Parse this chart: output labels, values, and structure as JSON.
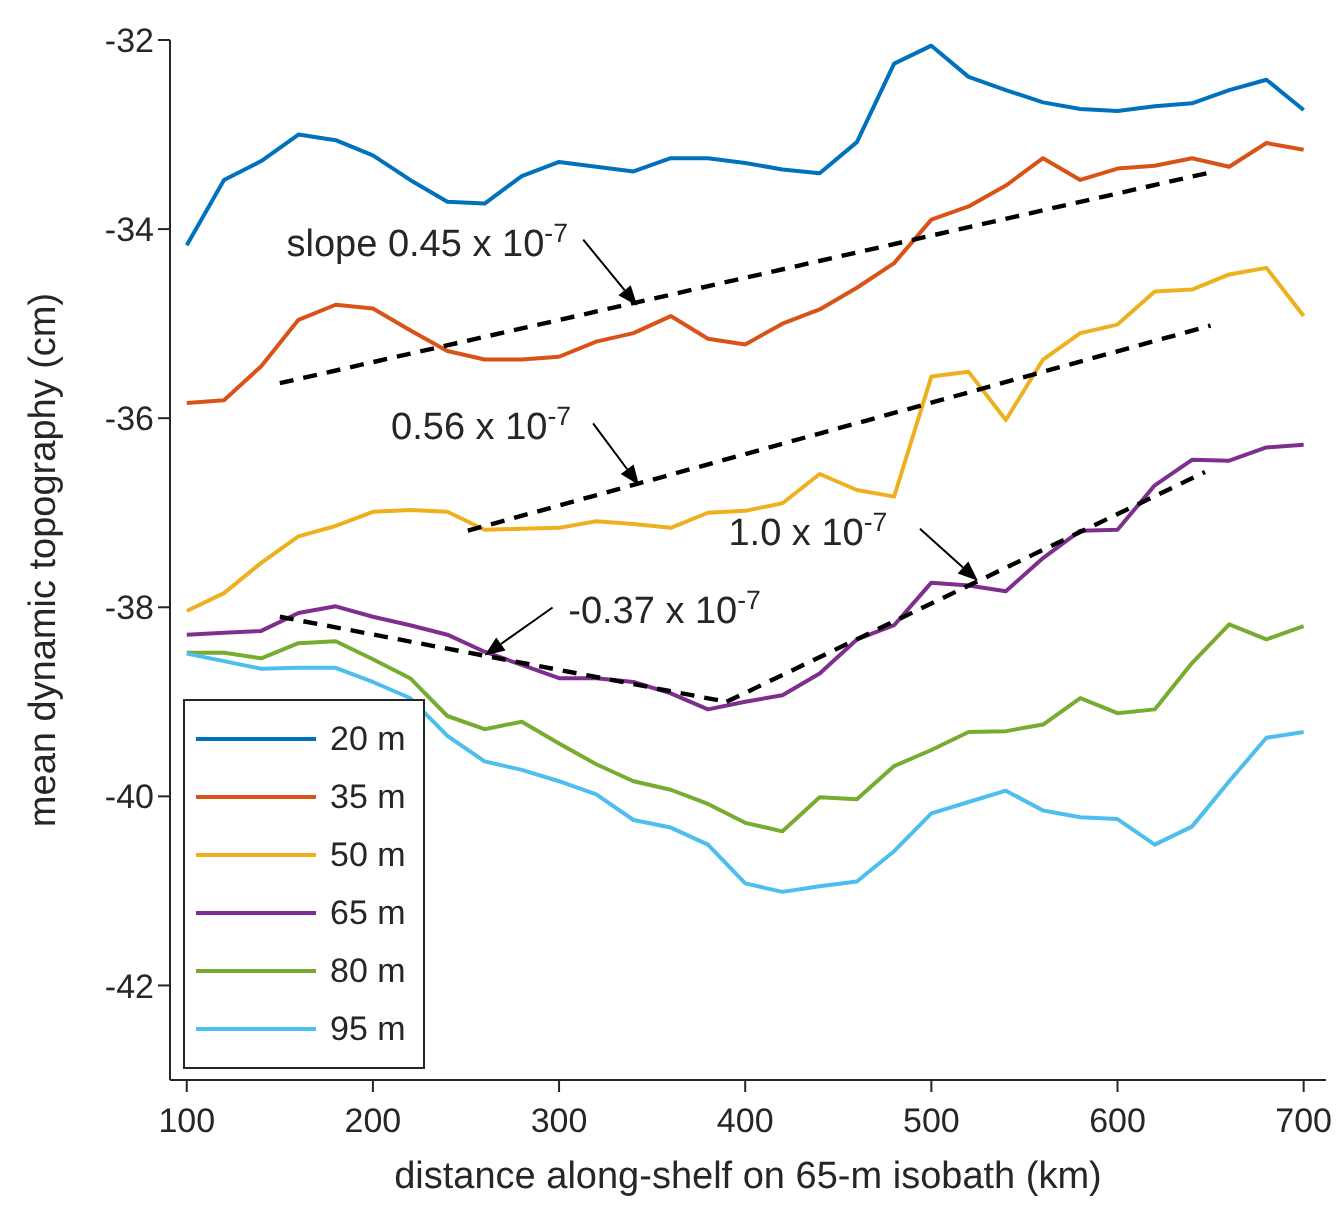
{
  "chart_data": {
    "type": "line",
    "xlabel": "distance along-shelf on 65-m isobath (km)",
    "ylabel": "mean dynamic topography (cm)",
    "x": [
      100,
      120,
      140,
      160,
      180,
      200,
      220,
      240,
      260,
      280,
      300,
      320,
      340,
      360,
      380,
      400,
      420,
      440,
      460,
      480,
      500,
      520,
      540,
      560,
      580,
      600,
      620,
      640,
      660,
      680,
      700
    ],
    "series": [
      {
        "name": "20 m",
        "color": "#0072bd",
        "values": [
          -34.17,
          -33.48,
          -33.28,
          -33.0,
          -33.06,
          -33.22,
          -33.48,
          -33.71,
          -33.73,
          -33.44,
          -33.29,
          -33.34,
          -33.39,
          -33.25,
          -33.25,
          -33.3,
          -33.37,
          -33.41,
          -33.08,
          -32.25,
          -32.06,
          -32.39,
          -32.53,
          -32.66,
          -32.73,
          -32.75,
          -32.7,
          -32.67,
          -32.53,
          -32.42,
          -32.74
        ]
      },
      {
        "name": "35 m",
        "color": "#d95319",
        "values": [
          -35.84,
          -35.81,
          -35.45,
          -34.96,
          -34.8,
          -34.84,
          -35.07,
          -35.29,
          -35.38,
          -35.38,
          -35.35,
          -35.19,
          -35.1,
          -34.92,
          -35.16,
          -35.22,
          -35.0,
          -34.85,
          -34.62,
          -34.36,
          -33.9,
          -33.76,
          -33.54,
          -33.25,
          -33.48,
          -33.36,
          -33.33,
          -33.25,
          -33.34,
          -33.09,
          -33.16
        ]
      },
      {
        "name": "50 m",
        "color": "#edb120",
        "values": [
          -38.04,
          -37.85,
          -37.53,
          -37.25,
          -37.14,
          -36.99,
          -36.97,
          -36.99,
          -37.18,
          -37.17,
          -37.16,
          -37.09,
          -37.12,
          -37.16,
          -37.0,
          -36.98,
          -36.9,
          -36.59,
          -36.76,
          -36.83,
          -35.56,
          -35.51,
          -36.02,
          -35.38,
          -35.1,
          -35.01,
          -34.66,
          -34.64,
          -34.48,
          -34.41,
          -34.92
        ]
      },
      {
        "name": "65 m",
        "color": "#7e2f8e",
        "values": [
          -38.29,
          -38.27,
          -38.25,
          -38.06,
          -37.99,
          -38.1,
          -38.19,
          -38.29,
          -38.47,
          -38.61,
          -38.75,
          -38.75,
          -38.79,
          -38.91,
          -39.08,
          -39.0,
          -38.93,
          -38.7,
          -38.34,
          -38.19,
          -37.74,
          -37.77,
          -37.83,
          -37.48,
          -37.19,
          -37.18,
          -36.71,
          -36.44,
          -36.45,
          -36.31,
          -36.28
        ]
      },
      {
        "name": "80 m",
        "color": "#77ac30",
        "values": [
          -38.48,
          -38.48,
          -38.54,
          -38.38,
          -38.36,
          -38.55,
          -38.75,
          -39.15,
          -39.29,
          -39.21,
          -39.44,
          -39.66,
          -39.84,
          -39.93,
          -40.08,
          -40.28,
          -40.37,
          -40.01,
          -40.03,
          -39.68,
          -39.51,
          -39.32,
          -39.31,
          -39.24,
          -38.96,
          -39.12,
          -39.08,
          -38.59,
          -38.18,
          -38.34,
          -38.2
        ]
      },
      {
        "name": "95 m",
        "color": "#4dbeee",
        "values": [
          -38.49,
          -38.57,
          -38.65,
          -38.64,
          -38.64,
          -38.79,
          -38.96,
          -39.36,
          -39.63,
          -39.72,
          -39.84,
          -39.98,
          -40.25,
          -40.33,
          -40.51,
          -40.92,
          -41.01,
          -40.95,
          -40.9,
          -40.58,
          -40.18,
          -40.06,
          -39.94,
          -40.15,
          -40.22,
          -40.24,
          -40.51,
          -40.32,
          -39.84,
          -39.38,
          -39.32
        ]
      },
      {
        "type": "line",
        "x": [
          150,
          650
        ],
        "color": "#000000",
        "line_style": "dashed",
        "values": [
          -35.63,
          -33.4
        ]
      },
      {
        "type": "line",
        "x": [
          251,
          650
        ],
        "color": "#000000",
        "line_style": "dashed",
        "values": [
          -37.19,
          -35.02
        ]
      },
      {
        "type": "line",
        "x": [
          390,
          647
        ],
        "color": "#000000",
        "line_style": "dashed",
        "values": [
          -39.0,
          -36.57
        ]
      },
      {
        "type": "line",
        "x": [
          150,
          390
        ],
        "color": "#000000",
        "line_style": "dashed",
        "values": [
          -38.1,
          -39.0
        ]
      }
    ],
    "annotations": [
      {
        "text": "slope 0.45 x 10$^{-7}$",
        "x": 342,
        "y": -34.81
      },
      {
        "text": "0.56 x 10$^{-7}$",
        "x": 343,
        "y": -36.71
      },
      {
        "text": "1.0 x 10$^{-7}$",
        "x": 525,
        "y": -37.72
      },
      {
        "text": "-0.37 x 10$^{-7}$",
        "x": 260,
        "y": -38.51
      }
    ],
    "xlim": [
      91,
      712
    ],
    "xticks": [
      100,
      200,
      300,
      400,
      500,
      600,
      700
    ],
    "ylim": [
      -43,
      -32
    ],
    "yticks": [
      -32,
      -34,
      -36,
      -38,
      -40,
      -42
    ],
    "grid": false,
    "legend": "bottom left",
    "marker": "none",
    "line_style": "solid"
  }
}
